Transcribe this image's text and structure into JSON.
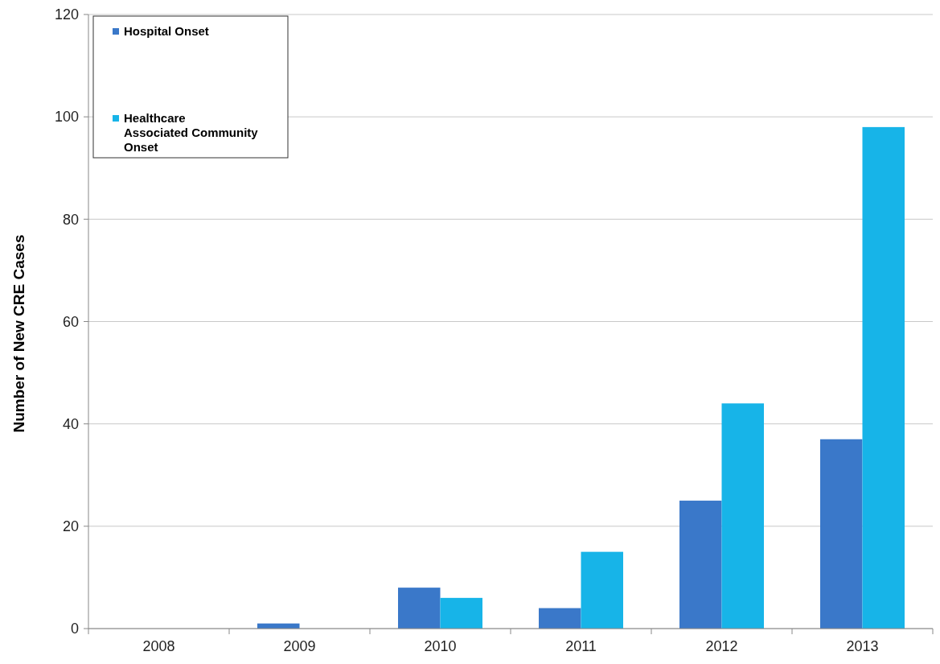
{
  "chart_data": {
    "type": "bar",
    "ylabel": "Number of New CRE Cases",
    "categories": [
      "2008",
      "2009",
      "2010",
      "2011",
      "2012",
      "2013"
    ],
    "series": [
      {
        "name": "Hospital Onset",
        "color": "#3a78c9",
        "values": [
          0,
          1,
          8,
          4,
          25,
          37
        ]
      },
      {
        "name": "Healthcare Associated Community Onset",
        "color": "#17b4e8",
        "values": [
          0,
          0,
          6,
          15,
          44,
          98
        ]
      }
    ],
    "ylim": [
      0,
      120
    ],
    "yticks": [
      0,
      20,
      40,
      60,
      80,
      100,
      120
    ],
    "grid": "y",
    "legend": "top left"
  }
}
